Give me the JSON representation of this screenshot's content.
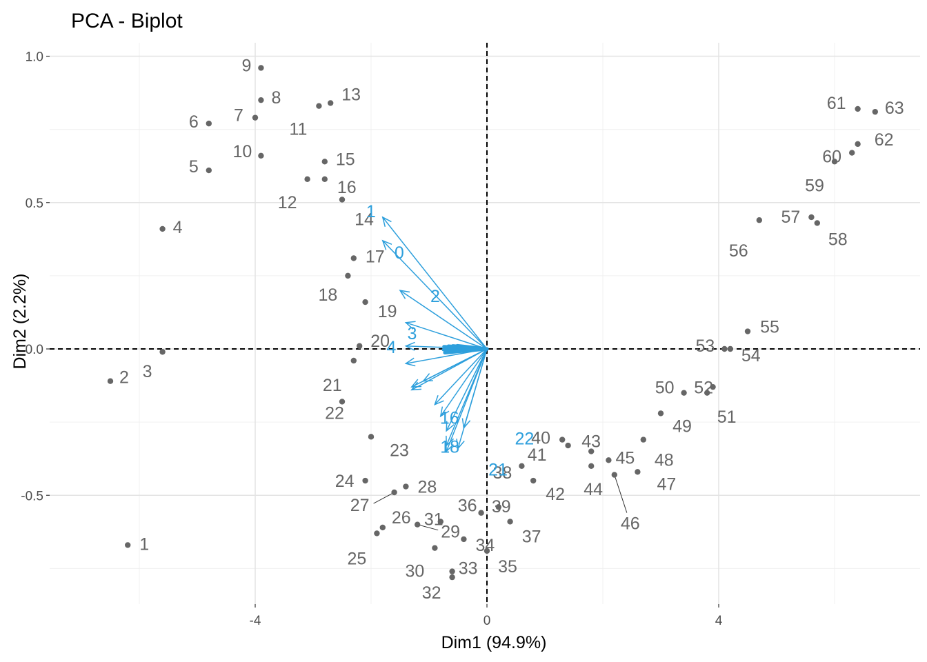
{
  "chart_data": {
    "type": "scatter",
    "title": "PCA - Biplot",
    "xlabel": "Dim1 (94.9%)",
    "ylabel": "Dim2 (2.2%)",
    "xlim": [
      -7.4,
      7.5
    ],
    "ylim": [
      -0.86,
      1.06
    ],
    "x_ticks": [
      -4,
      0,
      4
    ],
    "x_tick_labels": [
      "-4",
      "0",
      "4"
    ],
    "y_ticks": [
      -0.5,
      0.0,
      0.5,
      1.0
    ],
    "y_tick_labels": [
      "-0.5",
      "0.0",
      "0.5",
      "1.0"
    ],
    "grid": true,
    "reference_lines": {
      "x": 0,
      "y": 0,
      "style": "dashed"
    },
    "point_color": "#666666",
    "arrow_color": "#2d9fdc",
    "individuals": [
      {
        "label": "1",
        "x": -6.2,
        "y": -0.67
      },
      {
        "label": "2",
        "x": -6.5,
        "y": -0.11
      },
      {
        "label": "3",
        "x": -5.6,
        "y": -0.01
      },
      {
        "label": "4",
        "x": -5.6,
        "y": 0.41
      },
      {
        "label": "5",
        "x": -4.8,
        "y": 0.61
      },
      {
        "label": "6",
        "x": -4.8,
        "y": 0.77
      },
      {
        "label": "7",
        "x": -4.0,
        "y": 0.79
      },
      {
        "label": "8",
        "x": -3.9,
        "y": 0.85
      },
      {
        "label": "9",
        "x": -3.9,
        "y": 0.96
      },
      {
        "label": "10",
        "x": -3.9,
        "y": 0.66
      },
      {
        "label": "11",
        "x": -2.9,
        "y": 0.83
      },
      {
        "label": "12",
        "x": -3.1,
        "y": 0.58
      },
      {
        "label": "13",
        "x": -2.7,
        "y": 0.84
      },
      {
        "label": "14",
        "x": -2.5,
        "y": 0.51
      },
      {
        "label": "15",
        "x": -2.8,
        "y": 0.64
      },
      {
        "label": "16",
        "x": -2.8,
        "y": 0.58
      },
      {
        "label": "17",
        "x": -2.3,
        "y": 0.31
      },
      {
        "label": "18",
        "x": -2.4,
        "y": 0.25
      },
      {
        "label": "19",
        "x": -2.1,
        "y": 0.16
      },
      {
        "label": "20",
        "x": -2.2,
        "y": 0.01
      },
      {
        "label": "21",
        "x": -2.3,
        "y": -0.04
      },
      {
        "label": "22",
        "x": -2.5,
        "y": -0.18
      },
      {
        "label": "23",
        "x": -2.0,
        "y": -0.3
      },
      {
        "label": "24",
        "x": -2.1,
        "y": -0.45
      },
      {
        "label": "25",
        "x": -1.9,
        "y": -0.63
      },
      {
        "label": "26",
        "x": -1.8,
        "y": -0.61
      },
      {
        "label": "27",
        "x": -1.6,
        "y": -0.49
      },
      {
        "label": "28",
        "x": -1.4,
        "y": -0.47
      },
      {
        "label": "29",
        "x": -1.2,
        "y": -0.6
      },
      {
        "label": "30",
        "x": -0.9,
        "y": -0.68
      },
      {
        "label": "31",
        "x": -0.8,
        "y": -0.59
      },
      {
        "label": "32",
        "x": -0.6,
        "y": -0.78
      },
      {
        "label": "33",
        "x": -0.6,
        "y": -0.76
      },
      {
        "label": "34",
        "x": -0.4,
        "y": -0.65
      },
      {
        "label": "35",
        "x": 0.0,
        "y": -0.69
      },
      {
        "label": "36",
        "x": -0.1,
        "y": -0.56
      },
      {
        "label": "37",
        "x": 0.4,
        "y": -0.59
      },
      {
        "label": "38",
        "x": 0.6,
        "y": -0.4
      },
      {
        "label": "39",
        "x": 0.2,
        "y": -0.54
      },
      {
        "label": "40",
        "x": 1.3,
        "y": -0.31
      },
      {
        "label": "41",
        "x": 1.4,
        "y": -0.33
      },
      {
        "label": "42",
        "x": 0.8,
        "y": -0.45
      },
      {
        "label": "43",
        "x": 1.8,
        "y": -0.35
      },
      {
        "label": "44",
        "x": 1.8,
        "y": -0.4
      },
      {
        "label": "45",
        "x": 2.1,
        "y": -0.38
      },
      {
        "label": "46",
        "x": 2.2,
        "y": -0.43
      },
      {
        "label": "47",
        "x": 2.6,
        "y": -0.42
      },
      {
        "label": "48",
        "x": 2.7,
        "y": -0.31
      },
      {
        "label": "49",
        "x": 3.0,
        "y": -0.22
      },
      {
        "label": "50",
        "x": 3.4,
        "y": -0.15
      },
      {
        "label": "51",
        "x": 3.9,
        "y": -0.13
      },
      {
        "label": "52",
        "x": 3.8,
        "y": -0.15
      },
      {
        "label": "53",
        "x": 4.1,
        "y": 0.0
      },
      {
        "label": "54",
        "x": 4.2,
        "y": 0.0
      },
      {
        "label": "55",
        "x": 4.5,
        "y": 0.06
      },
      {
        "label": "56",
        "x": 4.7,
        "y": 0.44
      },
      {
        "label": "57",
        "x": 5.6,
        "y": 0.45
      },
      {
        "label": "58",
        "x": 5.7,
        "y": 0.43
      },
      {
        "label": "59",
        "x": 6.0,
        "y": 0.64
      },
      {
        "label": "60",
        "x": 6.3,
        "y": 0.67
      },
      {
        "label": "61",
        "x": 6.4,
        "y": 0.82
      },
      {
        "label": "62",
        "x": 6.4,
        "y": 0.7
      },
      {
        "label": "63",
        "x": 6.7,
        "y": 0.81
      }
    ],
    "variables": [
      {
        "label": "1",
        "x": -1.8,
        "y": 0.45
      },
      {
        "label": "0",
        "x": -1.8,
        "y": 0.37
      },
      {
        "label": "2",
        "x": -1.5,
        "y": 0.2
      },
      {
        "label": "3",
        "x": -1.4,
        "y": 0.09
      },
      {
        "label": "4",
        "x": -1.4,
        "y": 0.01
      },
      {
        "label": "",
        "x": -1.4,
        "y": -0.05
      },
      {
        "label": "",
        "x": -1.3,
        "y": -0.13
      },
      {
        "label": "",
        "x": -1.3,
        "y": -0.14
      },
      {
        "label": "",
        "x": -1.1,
        "y": -0.11
      },
      {
        "label": "",
        "x": -0.9,
        "y": -0.19
      },
      {
        "label": "16",
        "x": -0.8,
        "y": -0.23
      },
      {
        "label": "",
        "x": -0.7,
        "y": -0.28
      },
      {
        "label": "",
        "x": -0.7,
        "y": -0.33
      },
      {
        "label": "18",
        "x": -0.7,
        "y": -0.35
      },
      {
        "label": "21",
        "x": -0.5,
        "y": -0.34
      },
      {
        "label": "22",
        "x": -0.4,
        "y": -0.27
      }
    ]
  }
}
